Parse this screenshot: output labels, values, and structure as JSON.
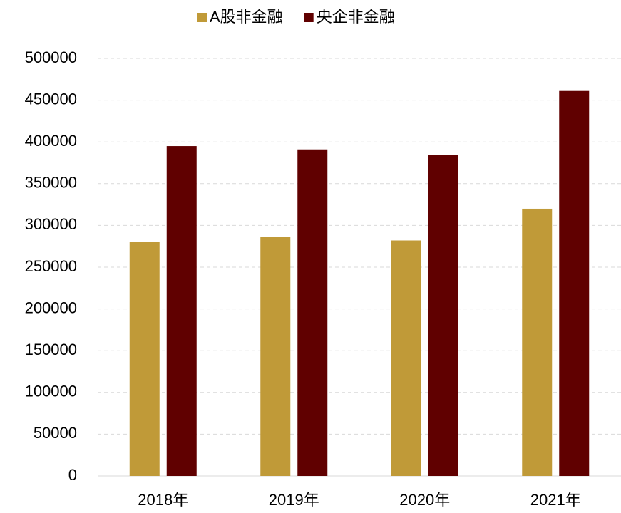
{
  "chart_data": {
    "type": "bar",
    "categories": [
      "2018年",
      "2019年",
      "2020年",
      "2021年"
    ],
    "series": [
      {
        "name": "A股非金融",
        "color": "#c09a38",
        "values": [
          280000,
          286000,
          282000,
          320000
        ]
      },
      {
        "name": "央企非金融",
        "color": "#600000",
        "values": [
          395000,
          391000,
          384000,
          461000
        ]
      }
    ],
    "ylim": [
      0,
      500000
    ],
    "yticks": [
      0,
      50000,
      100000,
      150000,
      200000,
      250000,
      300000,
      350000,
      400000,
      450000,
      500000
    ],
    "grid": true,
    "legend": "top"
  }
}
